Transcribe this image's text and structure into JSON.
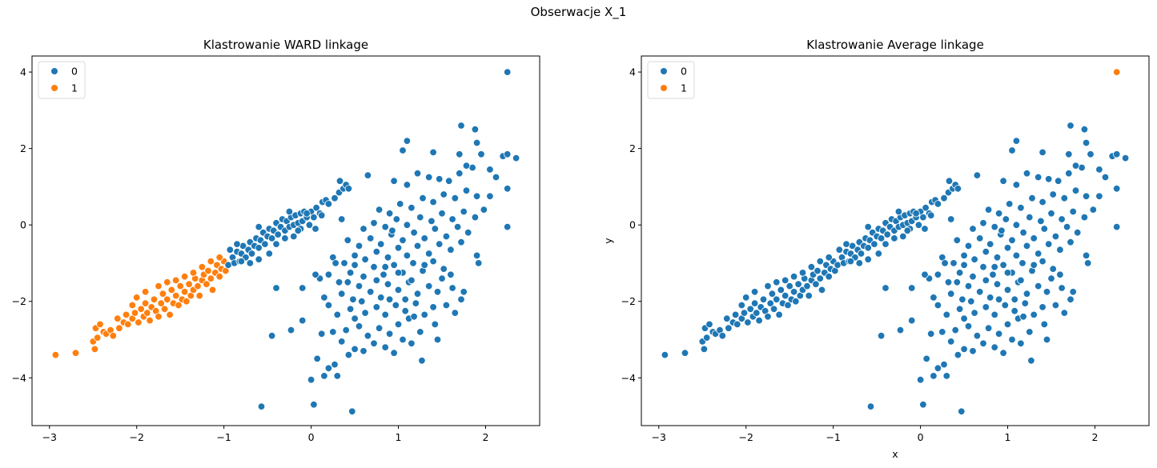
{
  "figure": {
    "suptitle": "Obserwacje X_1"
  },
  "colors": {
    "cluster_0": "#1f77b4",
    "cluster_1": "#ff7f0e"
  },
  "chart_data": [
    {
      "type": "scatter",
      "title": "Klastrowanie WARD linkage",
      "xlabel": "",
      "ylabel": "",
      "xlim": [
        -3.2,
        2.62
      ],
      "ylim": [
        -5.25,
        4.42
      ],
      "xticks": [
        -3,
        -2,
        -1,
        0,
        1,
        2
      ],
      "yticks": [
        -4,
        -2,
        0,
        2,
        4
      ],
      "xtick_labels": [
        "−3",
        "−2",
        "−1",
        "0",
        "1",
        "2"
      ],
      "ytick_labels": [
        "−4",
        "−2",
        "0",
        "2",
        "4"
      ],
      "grid": false,
      "legend": {
        "position": "upper left",
        "entries": [
          {
            "label": "0",
            "color": "#1f77b4"
          },
          {
            "label": "1",
            "color": "#ff7f0e"
          }
        ]
      },
      "assignment_rule": "diagonal points with x < -0.95 (and the far-left tail) -> cluster 1, everything else -> cluster 0"
    },
    {
      "type": "scatter",
      "title": "Klastrowanie Average linkage",
      "xlabel": "x",
      "ylabel": "y",
      "xlim": [
        -3.2,
        2.62
      ],
      "ylim": [
        -5.25,
        4.42
      ],
      "xticks": [
        -3,
        -2,
        -1,
        0,
        1,
        2
      ],
      "yticks": [
        -4,
        -2,
        0,
        2,
        4
      ],
      "xtick_labels": [
        "−3",
        "−2",
        "−1",
        "0",
        "1",
        "2"
      ],
      "ytick_labels": [
        "−4",
        "−2",
        "0",
        "2",
        "4"
      ],
      "grid": false,
      "legend": {
        "position": "upper left",
        "entries": [
          {
            "label": "0",
            "color": "#1f77b4"
          },
          {
            "label": "1",
            "color": "#ff7f0e"
          }
        ]
      },
      "assignment_rule": "only the outlier (2.25, 4.0) -> cluster 1, everything else -> cluster 0"
    }
  ],
  "points": {
    "outlier": [
      2.25,
      4.0
    ],
    "diagonal": [
      [
        -2.93,
        -3.4
      ],
      [
        -2.7,
        -3.35
      ],
      [
        -2.48,
        -3.25
      ],
      [
        -2.5,
        -3.05
      ],
      [
        -2.45,
        -2.95
      ],
      [
        -2.47,
        -2.7
      ],
      [
        -2.42,
        -2.6
      ],
      [
        -2.38,
        -2.8
      ],
      [
        -2.35,
        -2.85
      ],
      [
        -2.3,
        -2.75
      ],
      [
        -2.27,
        -2.9
      ],
      [
        -2.22,
        -2.45
      ],
      [
        -2.2,
        -2.7
      ],
      [
        -2.15,
        -2.55
      ],
      [
        -2.12,
        -2.35
      ],
      [
        -2.1,
        -2.6
      ],
      [
        -2.05,
        -2.45
      ],
      [
        -2.02,
        -2.3
      ],
      [
        -2.0,
        -1.9
      ],
      [
        -1.98,
        -2.55
      ],
      [
        -1.95,
        -2.2
      ],
      [
        -1.92,
        -2.4
      ],
      [
        -1.9,
        -2.05
      ],
      [
        -1.88,
        -2.3
      ],
      [
        -1.85,
        -2.5
      ],
      [
        -1.83,
        -2.15
      ],
      [
        -1.8,
        -1.95
      ],
      [
        -1.78,
        -2.25
      ],
      [
        -1.75,
        -2.4
      ],
      [
        -1.72,
        -2.05
      ],
      [
        -1.7,
        -1.8
      ],
      [
        -1.68,
        -2.2
      ],
      [
        -1.65,
        -1.95
      ],
      [
        -1.62,
        -2.35
      ],
      [
        -1.6,
        -1.7
      ],
      [
        -1.58,
        -2.05
      ],
      [
        -1.55,
        -1.85
      ],
      [
        -1.52,
        -2.1
      ],
      [
        -1.5,
        -1.6
      ],
      [
        -1.48,
        -1.95
      ],
      [
        -1.45,
        -1.75
      ],
      [
        -1.43,
        -2.0
      ],
      [
        -1.4,
        -1.55
      ],
      [
        -1.38,
        -1.85
      ],
      [
        -1.35,
        -1.7
      ],
      [
        -1.33,
        -1.4
      ],
      [
        -1.3,
        -1.6
      ],
      [
        -1.28,
        -1.85
      ],
      [
        -1.25,
        -1.45
      ],
      [
        -1.23,
        -1.3
      ],
      [
        -1.2,
        -1.55
      ],
      [
        -1.18,
        -1.2
      ],
      [
        -1.15,
        -1.4
      ],
      [
        -1.13,
        -1.7
      ],
      [
        -1.1,
        -1.25
      ],
      [
        -1.08,
        -1.05
      ],
      [
        -1.05,
        -1.35
      ],
      [
        -1.03,
        -1.15
      ],
      [
        -1.0,
        -0.95
      ],
      [
        -0.98,
        -1.2
      ],
      [
        -1.65,
        -1.5
      ],
      [
        -1.55,
        -1.45
      ],
      [
        -1.45,
        -1.35
      ],
      [
        -1.9,
        -1.75
      ],
      [
        -2.05,
        -2.1
      ],
      [
        -1.75,
        -1.6
      ],
      [
        -1.35,
        -1.25
      ],
      [
        -1.25,
        -1.1
      ],
      [
        -1.15,
        -0.95
      ],
      [
        -1.05,
        -0.85
      ],
      [
        -0.95,
        -1.05
      ],
      [
        -0.9,
        -0.85
      ],
      [
        -0.88,
        -1.0
      ],
      [
        -0.85,
        -0.7
      ],
      [
        -0.82,
        -0.95
      ],
      [
        -0.8,
        -0.75
      ],
      [
        -0.78,
        -0.55
      ],
      [
        -0.75,
        -0.85
      ],
      [
        -0.72,
        -0.65
      ],
      [
        -0.7,
        -0.45
      ],
      [
        -0.68,
        -0.75
      ],
      [
        -0.65,
        -0.55
      ],
      [
        -0.63,
        -0.35
      ],
      [
        -0.6,
        -0.6
      ],
      [
        -0.58,
        -0.4
      ],
      [
        -0.55,
        -0.2
      ],
      [
        -0.53,
        -0.5
      ],
      [
        -0.5,
        -0.3
      ],
      [
        -0.48,
        -0.1
      ],
      [
        -0.45,
        -0.35
      ],
      [
        -0.43,
        -0.15
      ],
      [
        -0.4,
        0.05
      ],
      [
        -0.38,
        -0.25
      ],
      [
        -0.35,
        -0.05
      ],
      [
        -0.33,
        0.15
      ],
      [
        -0.3,
        -0.15
      ],
      [
        -0.28,
        0.1
      ],
      [
        -0.25,
        -0.05
      ],
      [
        -0.23,
        0.2
      ],
      [
        -0.2,
        0.0
      ],
      [
        -0.18,
        0.25
      ],
      [
        -0.15,
        0.05
      ],
      [
        -0.12,
        0.3
      ],
      [
        -0.1,
        0.1
      ],
      [
        -0.08,
        0.35
      ],
      [
        -0.05,
        0.2
      ],
      [
        -0.02,
        0.0
      ],
      [
        0.0,
        0.35
      ],
      [
        0.03,
        0.2
      ],
      [
        0.06,
        0.45
      ],
      [
        0.1,
        0.3
      ],
      [
        0.13,
        0.6
      ],
      [
        0.17,
        0.65
      ],
      [
        0.2,
        0.55
      ],
      [
        0.27,
        0.7
      ],
      [
        0.32,
        0.85
      ],
      [
        0.37,
        0.95
      ],
      [
        0.4,
        1.05
      ],
      [
        0.43,
        0.95
      ],
      [
        0.33,
        1.15
      ],
      [
        -0.6,
        -0.05
      ],
      [
        -0.48,
        -0.75
      ],
      [
        -0.3,
        -0.35
      ],
      [
        -0.12,
        -0.1
      ],
      [
        0.05,
        -0.1
      ],
      [
        -0.05,
        0.3
      ],
      [
        -0.25,
        0.35
      ],
      [
        -0.6,
        -0.9
      ],
      [
        -0.8,
        -0.95
      ],
      [
        -0.93,
        -0.65
      ],
      [
        -0.7,
        -1.0
      ],
      [
        -0.85,
        -0.5
      ],
      [
        -0.4,
        -0.5
      ],
      [
        -0.2,
        -0.3
      ],
      [
        0.12,
        0.25
      ],
      [
        -0.15,
        -0.15
      ]
    ],
    "blob": [
      [
        0.0,
        -4.05
      ],
      [
        0.03,
        -4.7
      ],
      [
        -0.57,
        -4.75
      ],
      [
        0.47,
        -4.88
      ],
      [
        0.15,
        -3.95
      ],
      [
        0.3,
        -3.95
      ],
      [
        0.43,
        -3.4
      ],
      [
        0.2,
        -3.75
      ],
      [
        0.27,
        -3.65
      ],
      [
        0.07,
        -3.5
      ],
      [
        0.5,
        -3.25
      ],
      [
        0.6,
        -3.3
      ],
      [
        0.72,
        -3.1
      ],
      [
        0.85,
        -3.2
      ],
      [
        0.95,
        -3.35
      ],
      [
        1.05,
        -3.0
      ],
      [
        1.15,
        -3.1
      ],
      [
        1.27,
        -3.55
      ],
      [
        0.35,
        -3.05
      ],
      [
        0.12,
        -2.85
      ],
      [
        -0.45,
        -2.9
      ],
      [
        -0.23,
        -2.75
      ],
      [
        -0.1,
        -2.5
      ],
      [
        0.25,
        -2.8
      ],
      [
        0.4,
        -2.75
      ],
      [
        0.55,
        -2.65
      ],
      [
        0.65,
        -2.9
      ],
      [
        0.78,
        -2.7
      ],
      [
        0.9,
        -2.85
      ],
      [
        1.0,
        -2.6
      ],
      [
        1.12,
        -2.45
      ],
      [
        1.25,
        -2.8
      ],
      [
        1.42,
        -2.6
      ],
      [
        1.45,
        -3.0
      ],
      [
        0.3,
        -2.35
      ],
      [
        0.45,
        -2.2
      ],
      [
        0.5,
        -2.45
      ],
      [
        0.62,
        -2.3
      ],
      [
        0.75,
        -2.15
      ],
      [
        0.85,
        -2.35
      ],
      [
        0.97,
        -2.1
      ],
      [
        1.08,
        -2.25
      ],
      [
        1.2,
        -2.05
      ],
      [
        1.3,
        -2.35
      ],
      [
        1.4,
        -2.15
      ],
      [
        1.55,
        -2.1
      ],
      [
        1.65,
        -2.3
      ],
      [
        1.75,
        -1.75
      ],
      [
        1.72,
        -1.95
      ],
      [
        0.15,
        -1.9
      ],
      [
        0.2,
        -2.1
      ],
      [
        0.35,
        -1.8
      ],
      [
        0.48,
        -1.95
      ],
      [
        0.55,
        -1.6
      ],
      [
        0.68,
        -1.75
      ],
      [
        0.8,
        -1.9
      ],
      [
        0.88,
        -1.55
      ],
      [
        1.0,
        -1.7
      ],
      [
        1.12,
        -1.5
      ],
      [
        1.22,
        -1.8
      ],
      [
        1.35,
        -1.6
      ],
      [
        1.5,
        -1.4
      ],
      [
        1.62,
        -1.65
      ],
      [
        -0.4,
        -1.65
      ],
      [
        0.1,
        -1.4
      ],
      [
        0.2,
        -1.3
      ],
      [
        0.32,
        -1.5
      ],
      [
        0.45,
        -1.25
      ],
      [
        0.6,
        -1.35
      ],
      [
        0.72,
        -1.1
      ],
      [
        0.83,
        -1.3
      ],
      [
        0.95,
        -1.05
      ],
      [
        1.05,
        -1.25
      ],
      [
        1.17,
        -1.0
      ],
      [
        1.28,
        -1.2
      ],
      [
        1.4,
        -0.95
      ],
      [
        1.52,
        -1.15
      ],
      [
        1.6,
        -1.3
      ],
      [
        1.92,
        -1.0
      ],
      [
        1.9,
        -0.8
      ],
      [
        0.25,
        -0.85
      ],
      [
        0.38,
        -1.0
      ],
      [
        0.5,
        -0.8
      ],
      [
        0.62,
        -0.9
      ],
      [
        0.75,
        -0.7
      ],
      [
        0.88,
        -0.85
      ],
      [
        1.0,
        -0.6
      ],
      [
        1.1,
        -0.8
      ],
      [
        1.22,
        -0.55
      ],
      [
        1.35,
        -0.75
      ],
      [
        1.47,
        -0.5
      ],
      [
        1.6,
        -0.65
      ],
      [
        1.72,
        -0.45
      ],
      [
        0.42,
        -0.4
      ],
      [
        0.55,
        -0.55
      ],
      [
        0.68,
        -0.35
      ],
      [
        0.8,
        -0.5
      ],
      [
        0.92,
        -0.25
      ],
      [
        1.05,
        -0.4
      ],
      [
        1.18,
        -0.2
      ],
      [
        1.3,
        -0.35
      ],
      [
        1.42,
        -0.1
      ],
      [
        1.55,
        -0.3
      ],
      [
        1.68,
        -0.05
      ],
      [
        1.8,
        -0.2
      ],
      [
        0.6,
        -0.1
      ],
      [
        0.72,
        0.05
      ],
      [
        0.85,
        -0.05
      ],
      [
        0.98,
        0.15
      ],
      [
        1.1,
        0.0
      ],
      [
        1.25,
        0.2
      ],
      [
        1.38,
        0.1
      ],
      [
        1.5,
        0.3
      ],
      [
        1.62,
        0.15
      ],
      [
        1.75,
        0.35
      ],
      [
        1.88,
        0.2
      ],
      [
        1.98,
        0.4
      ],
      [
        0.78,
        0.4
      ],
      [
        0.9,
        0.3
      ],
      [
        1.02,
        0.55
      ],
      [
        1.15,
        0.45
      ],
      [
        1.28,
        0.7
      ],
      [
        1.4,
        0.6
      ],
      [
        1.52,
        0.8
      ],
      [
        1.65,
        0.7
      ],
      [
        1.78,
        0.9
      ],
      [
        1.9,
        0.75
      ],
      [
        2.05,
        0.75
      ],
      [
        2.25,
        0.95
      ],
      [
        0.65,
        1.3
      ],
      [
        0.95,
        1.15
      ],
      [
        1.1,
        1.05
      ],
      [
        1.22,
        1.35
      ],
      [
        1.35,
        1.25
      ],
      [
        1.47,
        1.2
      ],
      [
        1.58,
        1.15
      ],
      [
        1.7,
        1.35
      ],
      [
        1.85,
        1.5
      ],
      [
        1.78,
        1.55
      ],
      [
        2.05,
        1.45
      ],
      [
        2.12,
        1.25
      ],
      [
        1.05,
        1.95
      ],
      [
        1.1,
        2.2
      ],
      [
        1.4,
        1.9
      ],
      [
        1.7,
        1.85
      ],
      [
        1.72,
        2.6
      ],
      [
        1.88,
        2.5
      ],
      [
        1.9,
        2.15
      ],
      [
        1.95,
        1.85
      ],
      [
        2.2,
        1.8
      ],
      [
        2.25,
        1.85
      ],
      [
        2.35,
        1.75
      ],
      [
        2.25,
        -0.05
      ],
      [
        0.93,
        -0.15
      ],
      [
        0.35,
        0.15
      ],
      [
        0.28,
        -1.0
      ],
      [
        -0.1,
        -1.65
      ],
      [
        0.05,
        -1.3
      ],
      [
        0.58,
        -2.0
      ],
      [
        1.08,
        -1.95
      ],
      [
        1.18,
        -2.4
      ],
      [
        0.9,
        -1.95
      ],
      [
        0.42,
        -1.5
      ],
      [
        0.75,
        -1.45
      ],
      [
        1.0,
        -1.25
      ],
      [
        1.3,
        -1.05
      ],
      [
        0.5,
        -1.05
      ],
      [
        0.85,
        -1.1
      ],
      [
        1.15,
        -1.45
      ],
      [
        1.45,
        -1.75
      ]
    ]
  }
}
